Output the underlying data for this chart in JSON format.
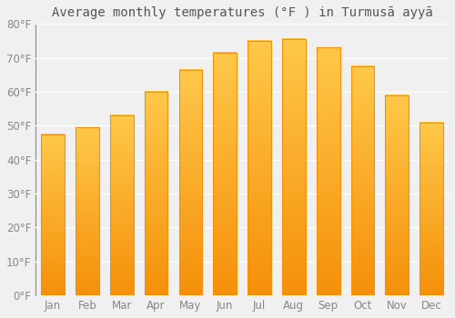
{
  "title": "Average monthly temperatures (°F ) in Turmusā ayyā",
  "months": [
    "Jan",
    "Feb",
    "Mar",
    "Apr",
    "May",
    "Jun",
    "Jul",
    "Aug",
    "Sep",
    "Oct",
    "Nov",
    "Dec"
  ],
  "values": [
    47.5,
    49.5,
    53.0,
    60.0,
    66.5,
    71.5,
    75.0,
    75.5,
    73.0,
    67.5,
    59.0,
    51.0
  ],
  "bar_color_light": "#FFC84A",
  "bar_color_dark": "#F5900A",
  "background_color": "#F0F0F0",
  "grid_color": "#FFFFFF",
  "ylim": [
    0,
    80
  ],
  "yticks": [
    0,
    10,
    20,
    30,
    40,
    50,
    60,
    70,
    80
  ],
  "title_fontsize": 10,
  "tick_fontsize": 8.5,
  "tick_color": "#888888"
}
